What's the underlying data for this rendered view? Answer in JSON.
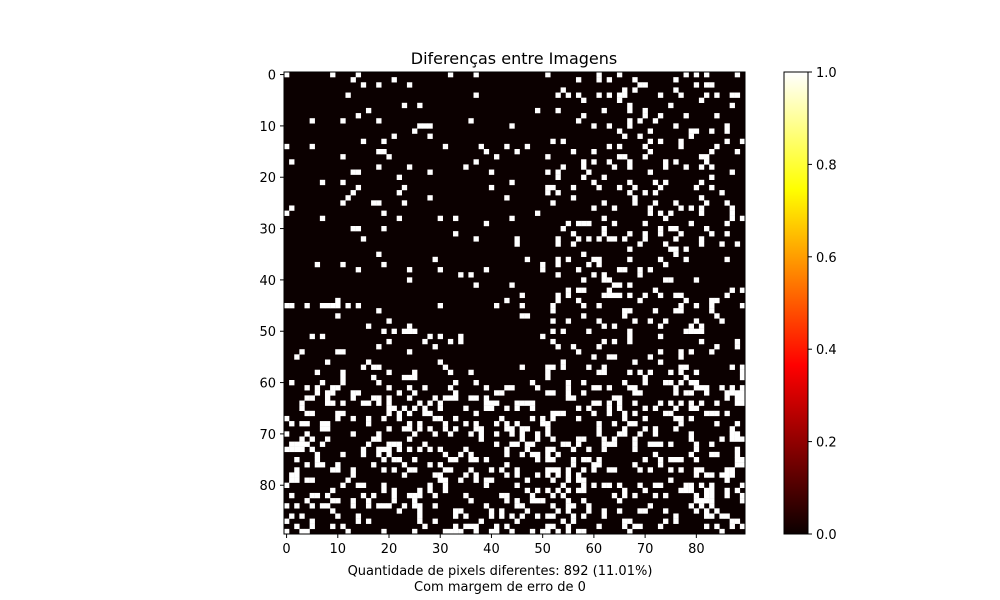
{
  "chart_data": {
    "type": "heatmap",
    "title": "Diferenças entre Imagens",
    "xlabel_lines": [
      "Quantidade de pixels diferentes: 892 (11.01%)",
      "Com margem de erro de 0"
    ],
    "grid_size": [
      90,
      90
    ],
    "colormap": "hot",
    "value_range": [
      0,
      1
    ],
    "x_ticks": [
      "0",
      "10",
      "20",
      "30",
      "40",
      "50",
      "60",
      "70",
      "80"
    ],
    "y_ticks": [
      "0",
      "10",
      "20",
      "30",
      "40",
      "50",
      "60",
      "70",
      "80"
    ],
    "colorbar_ticks": [
      "0.0",
      "0.2",
      "0.4",
      "0.6",
      "0.8",
      "1.0"
    ],
    "diff_pixel_count": 892,
    "diff_pixel_percent": "11.01%",
    "error_margin": 0,
    "colors": {
      "background_value_0": "#0b0000",
      "value_1": "#ffffff"
    }
  }
}
